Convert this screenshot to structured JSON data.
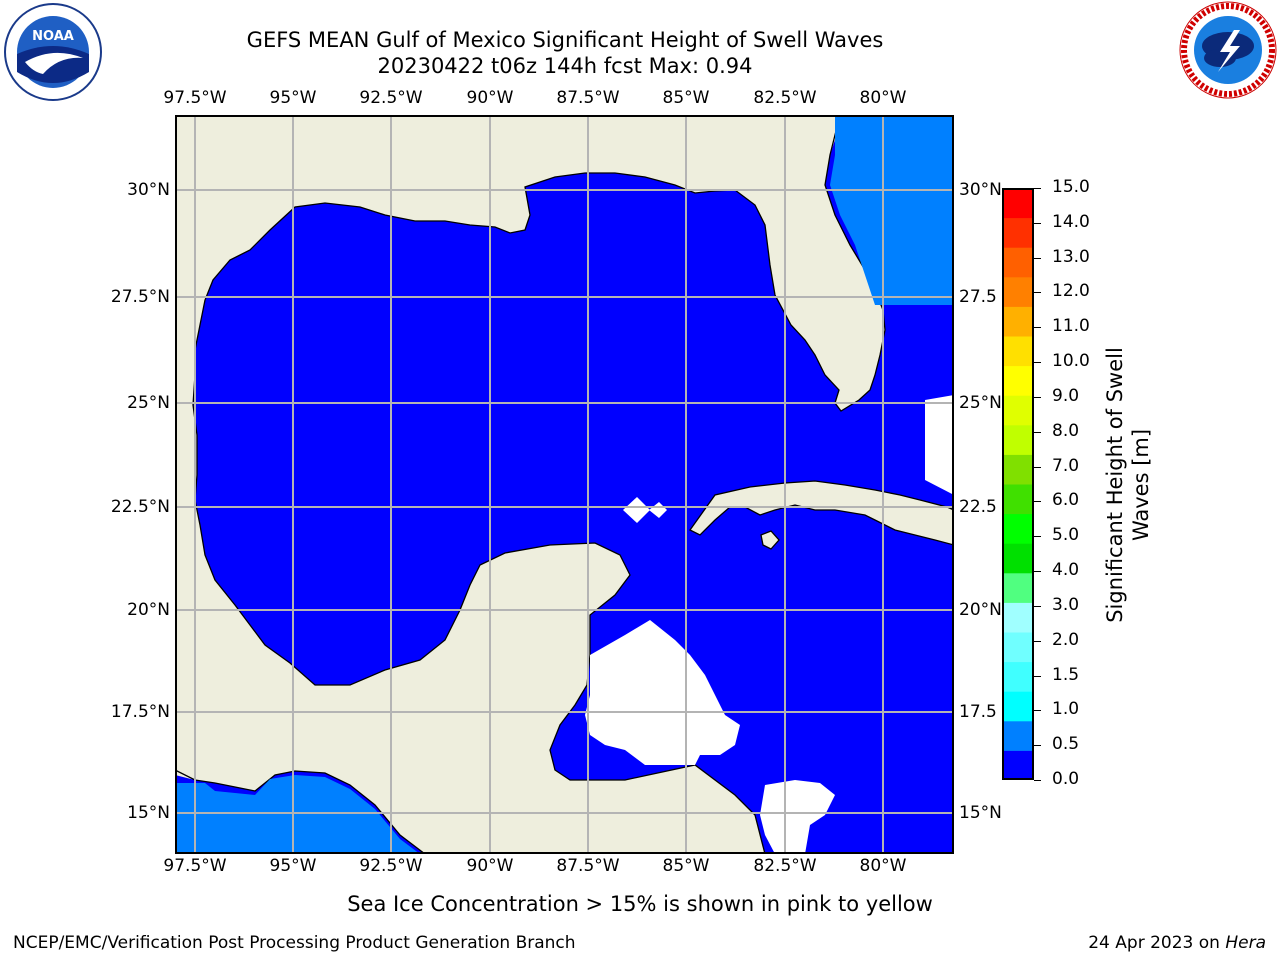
{
  "title_line1": "GEFS MEAN Gulf of Mexico Significant Height of Swell Waves",
  "title_line2": "20230422 t06z 144h fcst   Max: 0.94",
  "logos": {
    "left": {
      "icon": "noaa-logo",
      "text": "NOAA"
    },
    "right": {
      "icon": "national-weather-service-logo"
    }
  },
  "map": {
    "lon_labels": [
      "97.5°W",
      "95°W",
      "92.5°W",
      "90°W",
      "87.5°W",
      "85°W",
      "82.5°W",
      "80°W"
    ],
    "lat_labels": [
      "30°N",
      "27.5°N",
      "25°N",
      "22.5°N",
      "20°N",
      "17.5°N",
      "15°N"
    ],
    "lat_labels_right": [
      "30°N",
      "27.5",
      "25°N",
      "22.5",
      "20°N",
      "17.5",
      "15°N"
    ],
    "colors": {
      "land": "#eeeedd",
      "swell_0_0.5": "#0000ff",
      "swell_0.5_1.0": "#0080ff",
      "grid": "#b4b4b4"
    }
  },
  "colorbar": {
    "label": "Significant Height of Swell Waves [m]",
    "label_line1": "Significant Height of Swell",
    "label_line2": "Waves [m]",
    "ticks": [
      "15.0",
      "14.0",
      "13.0",
      "12.0",
      "11.0",
      "10.0",
      "9.0",
      "8.0",
      "7.0",
      "6.0",
      "5.0",
      "4.0",
      "3.0",
      "2.0",
      "1.5",
      "1.0",
      "0.5",
      "0.0"
    ],
    "colors_bottom_to_top": [
      "#0000ff",
      "#0080ff",
      "#00ffff",
      "#40ffff",
      "#70ffff",
      "#a0ffff",
      "#50ff80",
      "#00e000",
      "#00ff00",
      "#40e000",
      "#80e000",
      "#c0ff00",
      "#e0ff00",
      "#ffff00",
      "#ffe000",
      "#ffb000",
      "#ff8000",
      "#ff6000",
      "#ff3000",
      "#ff0000"
    ]
  },
  "caption": "Sea Ice Concentration > 15% is shown in pink to yellow",
  "footer_left": "NCEP/EMC/Verification Post Processing Product Generation Branch",
  "footer_right_prefix": "24 Apr 2023 on ",
  "footer_right_machine": "Hera"
}
